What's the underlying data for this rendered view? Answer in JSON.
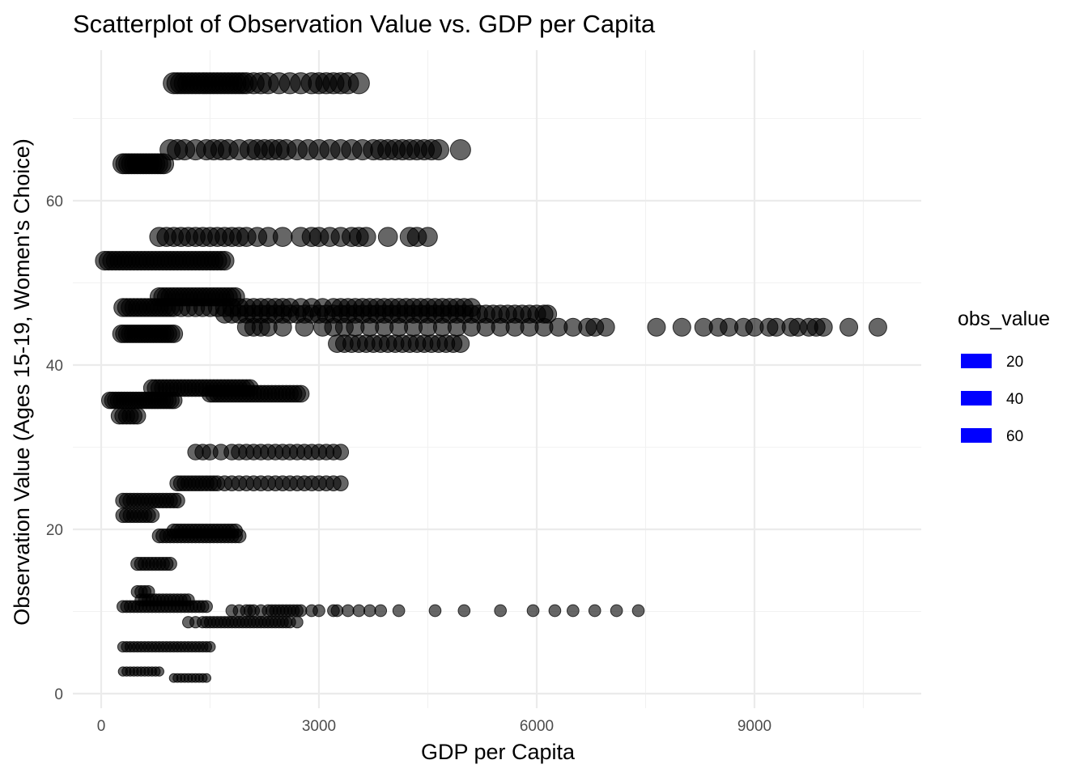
{
  "chart_data": {
    "type": "scatter",
    "title": "Scatterplot of Observation Value vs. GDP per Capita",
    "xlabel": "GDP per Capita",
    "ylabel": "Observation Value (Ages 15-19, Women's Choice)",
    "xlim": [
      -1000,
      11200
    ],
    "ylim": [
      -2,
      77
    ],
    "x_ticks": [
      0,
      3000,
      6000,
      9000
    ],
    "x_tick_labels": [
      "0",
      "3000",
      "6000",
      "9000"
    ],
    "y_ticks": [
      0,
      20,
      40,
      60
    ],
    "y_tick_labels": [
      "0",
      "20",
      "40",
      "60"
    ],
    "grid": true,
    "point_color": "#000000",
    "point_opacity": 0.6,
    "legend": {
      "title": "obs_value",
      "position": "right",
      "color": "#0000ff",
      "entries": [
        {
          "label": "20",
          "value": 20
        },
        {
          "label": "40",
          "value": 40
        },
        {
          "label": "60",
          "value": 60
        }
      ]
    },
    "rows": [
      {
        "y": 74.3,
        "x": [
          1000,
          1050,
          1100,
          1150,
          1200,
          1250,
          1300,
          1350,
          1400,
          1450,
          1500,
          1550,
          1600,
          1650,
          1700,
          1750,
          1800,
          1850,
          1900,
          1950,
          2000,
          2100,
          2200,
          2300,
          2450,
          2600,
          2750,
          2900,
          3000,
          3100,
          3200,
          3300,
          3400,
          3550
        ]
      },
      {
        "y": 66.2,
        "x": [
          950,
          1050,
          1150,
          1300,
          1450,
          1550,
          1650,
          1750,
          1900,
          2050,
          2150,
          2250,
          2350,
          2450,
          2550,
          2700,
          2850,
          3000,
          3150,
          3300,
          3450,
          3600,
          3750,
          3850,
          3950,
          4050,
          4150,
          4250,
          4350,
          4450,
          4550,
          4650,
          4950
        ]
      },
      {
        "y": 64.5,
        "x": [
          300,
          340,
          380,
          420,
          460,
          500,
          540,
          580,
          620,
          660,
          700,
          740,
          780,
          820,
          860
        ]
      },
      {
        "y": 55.6,
        "x": [
          800,
          900,
          1000,
          1100,
          1200,
          1300,
          1400,
          1500,
          1600,
          1700,
          1800,
          1900,
          2000,
          2150,
          2300,
          2500,
          2750,
          2900,
          3000,
          3150,
          3300,
          3450,
          3550,
          3650,
          3950,
          4250,
          4350,
          4500
        ]
      },
      {
        "y": 52.7,
        "x": [
          50,
          100,
          150,
          200,
          250,
          300,
          350,
          400,
          450,
          500,
          550,
          600,
          650,
          700,
          750,
          800,
          850,
          900,
          950,
          1000,
          1050,
          1100,
          1150,
          1200,
          1250,
          1300,
          1350,
          1400,
          1450,
          1500,
          1550,
          1600,
          1650,
          1700
        ]
      },
      {
        "y": 48.3,
        "x": [
          800,
          850,
          900,
          950,
          1000,
          1050,
          1100,
          1150,
          1200,
          1250,
          1300,
          1350,
          1400,
          1450,
          1500,
          1550,
          1600,
          1650,
          1700,
          1750,
          1800,
          1850
        ]
      },
      {
        "y": 47.0,
        "x": [
          300,
          350,
          400,
          450,
          500,
          550,
          600,
          650,
          700,
          750,
          800,
          850,
          900,
          950,
          1000,
          1100,
          1200,
          1300,
          1400,
          1500,
          1600,
          1700,
          1800,
          1900,
          2000,
          2100,
          2200,
          2300,
          2400,
          2500,
          2600,
          2750,
          2900,
          3050,
          3200,
          3300,
          3400,
          3500,
          3600,
          3700,
          3800,
          3900,
          4000,
          4100,
          4200,
          4300,
          4400,
          4500,
          4600,
          4700,
          4800,
          4900,
          5000,
          5100
        ]
      },
      {
        "y": 46.2,
        "x": [
          1700,
          1800,
          1900,
          2000,
          2100,
          2200,
          2300,
          2400,
          2500,
          2600,
          2700,
          2800,
          2900,
          3000,
          3100,
          3200,
          3300,
          3400,
          3500,
          3600,
          3700,
          3800,
          3900,
          4000,
          4100,
          4200,
          4300,
          4400,
          4500,
          4600,
          4700,
          4800,
          4900,
          5000,
          5100,
          5200,
          5300,
          5400,
          5500,
          5600,
          5700,
          5800,
          5900,
          6000,
          6100,
          6150
        ]
      },
      {
        "y": 44.6,
        "x": [
          2000,
          2100,
          2200,
          2300,
          2500,
          2800,
          3050,
          3200,
          3350,
          3500,
          3700,
          3900,
          4100,
          4300,
          4500,
          4700,
          4900,
          5100,
          5300,
          5500,
          5700,
          5900,
          6100,
          6300,
          6500,
          6700,
          6800,
          6950,
          7650,
          8000,
          8300,
          8500,
          8650,
          8850,
          9000,
          9200,
          9300,
          9500,
          9600,
          9750,
          9850,
          9950,
          10300,
          10700
        ]
      },
      {
        "y": 43.8,
        "x": [
          280,
          320,
          360,
          400,
          440,
          480,
          520,
          560,
          600,
          640,
          680,
          720,
          760,
          800,
          840,
          880,
          920,
          960,
          1000
        ]
      },
      {
        "y": 42.6,
        "x": [
          3250,
          3350,
          3450,
          3550,
          3650,
          3750,
          3850,
          3950,
          4050,
          4150,
          4250,
          4350,
          4450,
          4550,
          4650,
          4750,
          4850,
          4950
        ]
      },
      {
        "y": 37.2,
        "x": [
          700,
          750,
          800,
          850,
          900,
          950,
          1000,
          1050,
          1100,
          1150,
          1200,
          1250,
          1300,
          1350,
          1400,
          1450,
          1500,
          1550,
          1600,
          1650,
          1700,
          1750,
          1800,
          1850,
          1900,
          1950,
          2000,
          2050
        ]
      },
      {
        "y": 36.5,
        "x": [
          1500,
          1550,
          1600,
          1650,
          1700,
          1750,
          1800,
          1850,
          1900,
          1950,
          2000,
          2050,
          2100,
          2150,
          2200,
          2250,
          2300,
          2350,
          2400,
          2450,
          2500,
          2550,
          2600,
          2650,
          2700,
          2750
        ]
      },
      {
        "y": 35.7,
        "x": [
          120,
          160,
          200,
          240,
          280,
          320,
          360,
          400,
          440,
          480,
          520,
          560,
          600,
          640,
          680,
          720,
          760,
          800,
          840,
          880,
          920,
          960,
          1000
        ]
      },
      {
        "y": 33.8,
        "x": [
          250,
          300,
          350,
          400,
          450,
          500
        ]
      },
      {
        "y": 29.4,
        "x": [
          1300,
          1400,
          1500,
          1650,
          1800,
          1900,
          2000,
          2100,
          2200,
          2300,
          2400,
          2500,
          2600,
          2700,
          2800,
          2900,
          3000,
          3100,
          3200,
          3300
        ]
      },
      {
        "y": 25.6,
        "x": [
          1050,
          1100,
          1150,
          1200,
          1250,
          1300,
          1350,
          1400,
          1450,
          1500,
          1550,
          1600,
          1700,
          1800,
          1900,
          2000,
          2100,
          2200,
          2300,
          2400,
          2500,
          2600,
          2700,
          2800,
          2900,
          3000,
          3100,
          3200,
          3300
        ]
      },
      {
        "y": 23.5,
        "x": [
          300,
          350,
          400,
          450,
          500,
          550,
          600,
          650,
          700,
          750,
          800,
          850,
          900,
          950,
          1000,
          1050
        ]
      },
      {
        "y": 21.7,
        "x": [
          300,
          350,
          400,
          450,
          500,
          550,
          600,
          650,
          700
        ]
      },
      {
        "y": 19.8,
        "x": [
          1000,
          1050,
          1100,
          1150,
          1200,
          1250,
          1300,
          1350,
          1400,
          1450,
          1500,
          1550,
          1600,
          1650,
          1700,
          1750,
          1800,
          1850
        ]
      },
      {
        "y": 19.2,
        "x": [
          800,
          850,
          900,
          950,
          1000,
          1050,
          1100,
          1150,
          1200,
          1250,
          1300,
          1350,
          1400,
          1450,
          1500,
          1550,
          1600,
          1650,
          1700,
          1750,
          1800,
          1850,
          1900
        ]
      },
      {
        "y": 15.8,
        "x": [
          500,
          550,
          600,
          650,
          700,
          750,
          800,
          850,
          900,
          950
        ]
      },
      {
        "y": 12.4,
        "x": [
          500,
          550,
          600,
          650
        ]
      },
      {
        "y": 11.4,
        "x": [
          550,
          600,
          650,
          700,
          750,
          800,
          850,
          900,
          950,
          1000,
          1050,
          1100,
          1150,
          1200
        ]
      },
      {
        "y": 10.6,
        "x": [
          300,
          350,
          400,
          450,
          500,
          550,
          600,
          650,
          700,
          750,
          800,
          850,
          900,
          950,
          1000,
          1050,
          1100,
          1150,
          1200,
          1250,
          1300,
          1350,
          1400,
          1450
        ]
      },
      {
        "y": 10.1,
        "x": [
          1800,
          1900,
          2000,
          2050,
          2100,
          2200,
          2300,
          2350,
          2400,
          2450,
          2500,
          2550,
          2600,
          2650,
          2700,
          2750,
          2900,
          3000,
          3200,
          3250,
          3400,
          3550,
          3700,
          3850,
          4100,
          4600,
          5000,
          5500,
          5950,
          6250,
          6500,
          6800,
          7100,
          7400
        ]
      },
      {
        "y": 8.7,
        "x": [
          1200,
          1300,
          1400,
          1450,
          1500,
          1550,
          1600,
          1650,
          1700,
          1750,
          1800,
          1850,
          1900,
          1950,
          2000,
          2050,
          2100,
          2150,
          2200,
          2250,
          2300,
          2350,
          2400,
          2450,
          2500,
          2550,
          2600,
          2700
        ]
      },
      {
        "y": 5.7,
        "x": [
          300,
          350,
          400,
          450,
          500,
          550,
          600,
          650,
          700,
          750,
          800,
          850,
          900,
          950,
          1000,
          1050,
          1100,
          1150,
          1200,
          1250,
          1300,
          1350,
          1400,
          1450,
          1500
        ]
      },
      {
        "y": 2.7,
        "x": [
          300,
          350,
          400,
          450,
          500,
          550,
          600,
          650,
          700,
          750,
          800
        ]
      },
      {
        "y": 1.9,
        "x": [
          1000,
          1050,
          1100,
          1150,
          1200,
          1250,
          1300,
          1350,
          1400,
          1450
        ]
      }
    ]
  }
}
